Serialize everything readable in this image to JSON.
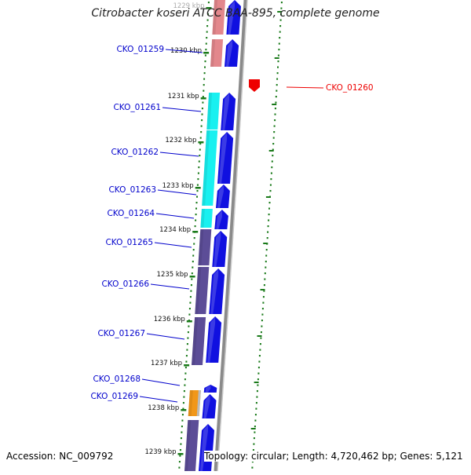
{
  "title": "Citrobacter koseri ATCC BAA-895, complete genome",
  "accession": "Accession: NC_009792",
  "topology": "Topology: circular; Length: 4,720,462 bp; Genes: 5,121",
  "colors": {
    "forward_cds": "#1010e0",
    "label_blue": "#0000cc",
    "highlight_red": "#ee0000",
    "pink": "#e07a80",
    "cyan": "#00eeee",
    "purple": "#4a3a8c",
    "orange": "#f08c00",
    "grey_backbone": "#888888",
    "tick_green": "#1a7a1a"
  },
  "ticks": [
    {
      "label": "1229 kbp"
    },
    {
      "label": "1230 kbp"
    },
    {
      "label": "1231 kbp"
    },
    {
      "label": "1232 kbp"
    },
    {
      "label": "1233 kbp"
    },
    {
      "label": "1234 kbp"
    },
    {
      "label": "1235 kbp"
    },
    {
      "label": "1236 kbp"
    },
    {
      "label": "1237 kbp"
    },
    {
      "label": "1238 kbp"
    },
    {
      "label": "1239 kbp"
    }
  ],
  "genes": [
    {
      "name": "CKO_01259",
      "color": "blue"
    },
    {
      "name": "CKO_01260",
      "color": "red"
    },
    {
      "name": "CKO_01261",
      "color": "blue"
    },
    {
      "name": "CKO_01262",
      "color": "blue"
    },
    {
      "name": "CKO_01263",
      "color": "blue"
    },
    {
      "name": "CKO_01264",
      "color": "blue"
    },
    {
      "name": "CKO_01265",
      "color": "blue"
    },
    {
      "name": "CKO_01266",
      "color": "blue"
    },
    {
      "name": "CKO_01267",
      "color": "blue"
    },
    {
      "name": "CKO_01268",
      "color": "blue"
    },
    {
      "name": "CKO_01269",
      "color": "blue"
    }
  ]
}
